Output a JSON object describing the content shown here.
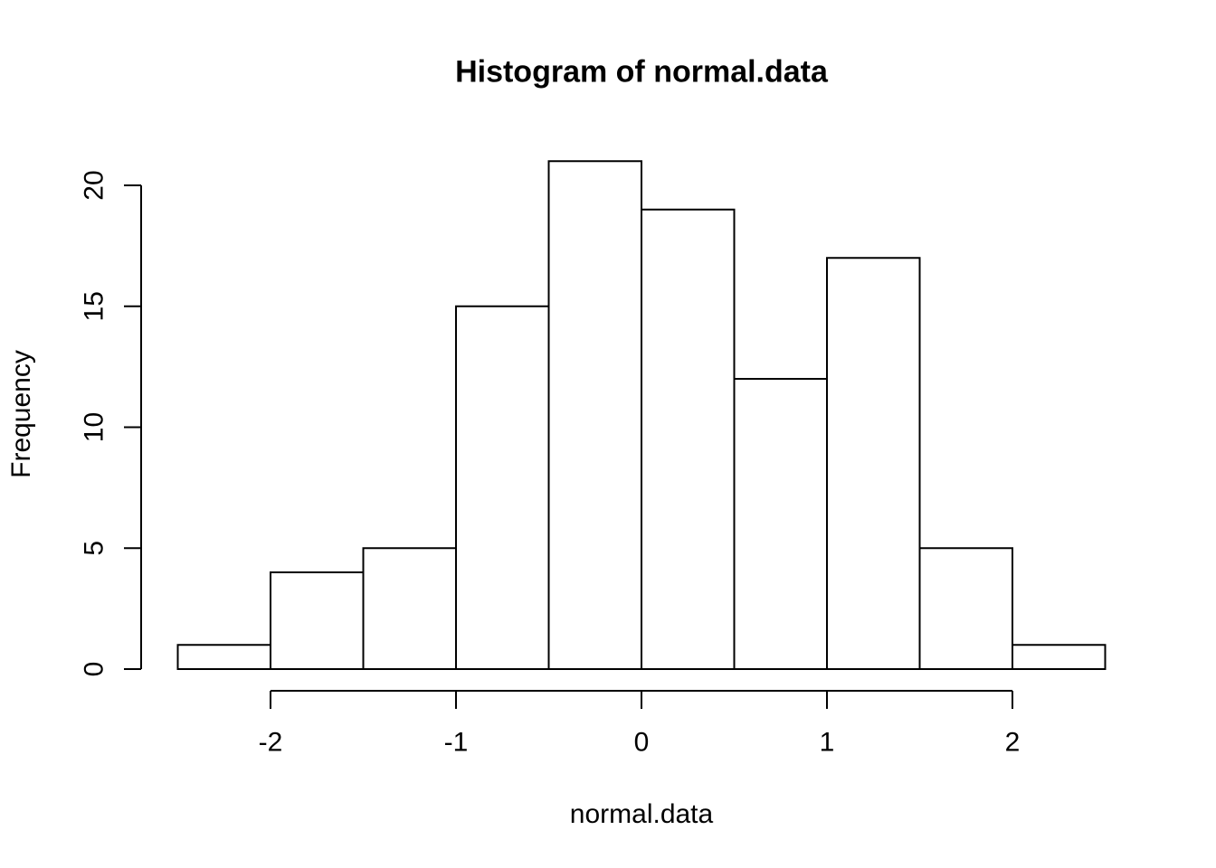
{
  "figure": {
    "background": "#ffffff"
  },
  "chart_data": {
    "type": "bar",
    "subtype": "histogram",
    "title": "Histogram of normal.data",
    "xlabel": "normal.data",
    "ylabel": "Frequency",
    "bin_edges": [
      -2.5,
      -2.0,
      -1.5,
      -1.0,
      -0.5,
      0.0,
      0.5,
      1.0,
      1.5,
      2.0,
      2.5
    ],
    "counts": [
      1,
      4,
      5,
      15,
      21,
      19,
      12,
      17,
      5,
      1
    ],
    "x_ticks": [
      -2,
      -1,
      0,
      1,
      2
    ],
    "x_tick_labels": [
      "-2",
      "-1",
      "0",
      "1",
      "2"
    ],
    "y_ticks": [
      0,
      5,
      10,
      15,
      20
    ],
    "y_tick_labels": [
      "0",
      "5",
      "10",
      "15",
      "20"
    ],
    "xlim": [
      -2.5,
      2.5
    ],
    "ylim": [
      0,
      21
    ],
    "grid": false,
    "bar_fill": "#ffffff",
    "bar_border": "#000000",
    "axis_color": "#000000",
    "text_color": "#000000"
  }
}
